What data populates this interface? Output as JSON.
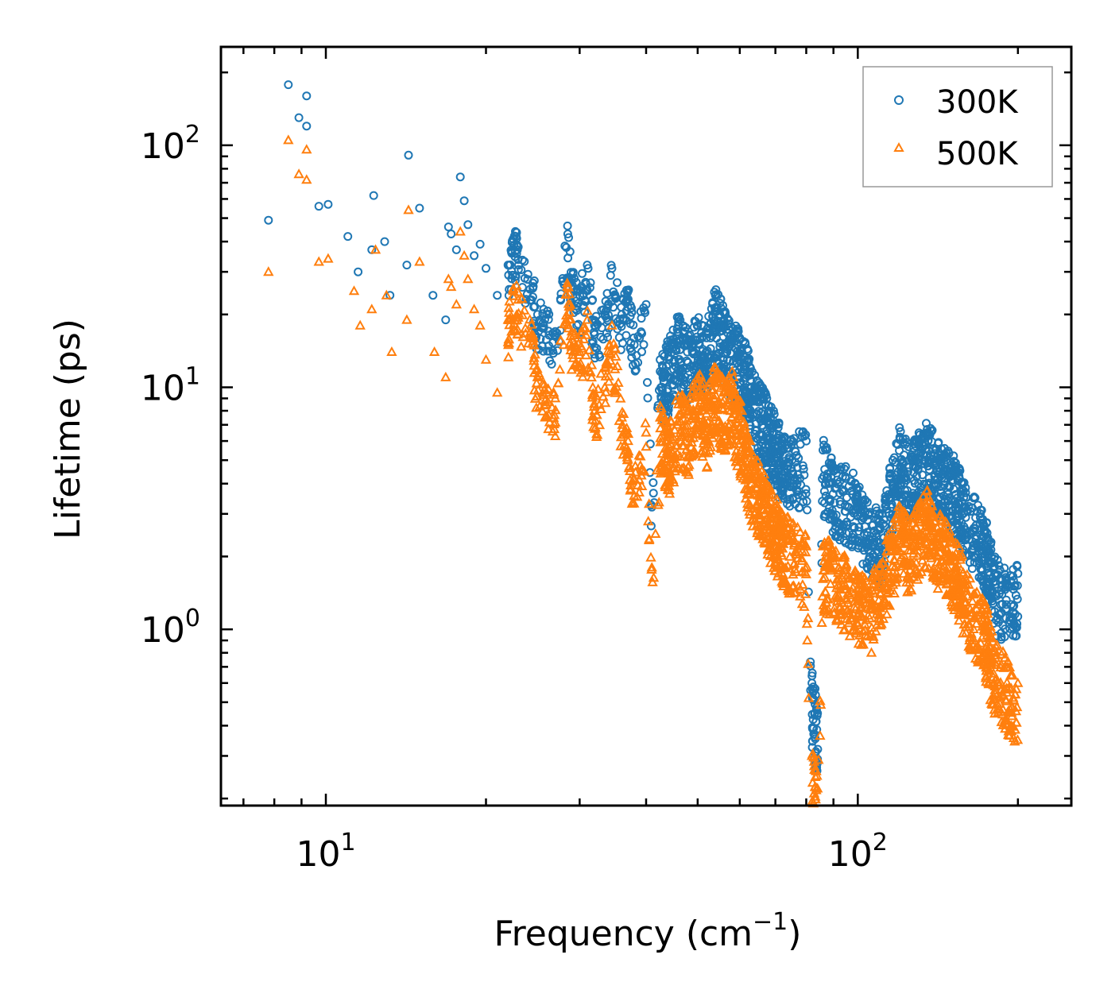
{
  "chart_data": {
    "type": "scatter",
    "title": "",
    "xlabel": "Frequency (cm",
    "xlabel_sup": "−1",
    "xlabel_close": ")",
    "ylabel": "Lifetime (ps)",
    "xscale": "log",
    "yscale": "log",
    "xlim": [
      6.35,
      252
    ],
    "ylim": [
      0.187,
      255
    ],
    "x_ticks": [
      {
        "value": 10,
        "base": "10",
        "exp": "1"
      },
      {
        "value": 100,
        "base": "10",
        "exp": "2"
      }
    ],
    "y_ticks": [
      {
        "value": 1,
        "base": "10",
        "exp": "0"
      },
      {
        "value": 10,
        "base": "10",
        "exp": "1"
      },
      {
        "value": 100,
        "base": "10",
        "exp": "2"
      }
    ],
    "legend_position": "top-right",
    "series": [
      {
        "name": "300K",
        "marker": "circle",
        "color": "#1f77b4",
        "sample_points": [
          [
            7.8,
            49
          ],
          [
            8.5,
            178
          ],
          [
            8.9,
            130
          ],
          [
            9.2,
            160
          ],
          [
            9.2,
            120
          ],
          [
            9.7,
            56
          ],
          [
            10.1,
            57
          ],
          [
            11.0,
            42
          ],
          [
            11.5,
            30
          ],
          [
            12.2,
            37
          ],
          [
            12.3,
            62
          ],
          [
            12.9,
            40
          ],
          [
            13.2,
            24
          ],
          [
            14.2,
            32
          ],
          [
            14.3,
            91
          ],
          [
            15.0,
            55
          ],
          [
            15.9,
            24
          ],
          [
            16.8,
            19
          ],
          [
            17.0,
            46
          ],
          [
            17.2,
            43
          ],
          [
            17.6,
            37
          ],
          [
            17.9,
            74
          ],
          [
            18.2,
            59
          ],
          [
            18.5,
            47
          ],
          [
            19.0,
            35
          ],
          [
            19.5,
            39
          ],
          [
            20.0,
            31
          ],
          [
            21.0,
            24
          ],
          [
            22.0,
            32
          ],
          [
            22.5,
            41
          ],
          [
            23.0,
            38
          ],
          [
            24.5,
            27
          ],
          [
            25.0,
            20
          ],
          [
            26.0,
            20
          ],
          [
            27.0,
            17
          ],
          [
            28.5,
            43
          ],
          [
            29.0,
            28
          ],
          [
            30.0,
            24
          ],
          [
            31.0,
            32
          ],
          [
            32.0,
            18
          ],
          [
            33.5,
            20
          ],
          [
            34.5,
            31
          ],
          [
            36.0,
            20
          ],
          [
            37.0,
            25
          ],
          [
            38.0,
            15
          ],
          [
            40.0,
            22
          ],
          [
            41.0,
            3.2
          ],
          [
            42.5,
            13
          ],
          [
            44.0,
            14
          ],
          [
            46.0,
            18
          ],
          [
            48.0,
            15
          ],
          [
            50.0,
            18
          ],
          [
            52.0,
            16
          ],
          [
            54.0,
            24
          ],
          [
            56.0,
            19
          ],
          [
            58.0,
            16
          ],
          [
            60.0,
            16
          ],
          [
            62.0,
            13
          ],
          [
            64.0,
            10
          ],
          [
            66.0,
            9
          ],
          [
            68.0,
            8
          ],
          [
            70.0,
            7
          ],
          [
            72.0,
            6
          ],
          [
            75.0,
            5.8
          ],
          [
            80.0,
            6
          ],
          [
            82.0,
            0.6
          ],
          [
            84.0,
            0.45
          ],
          [
            86.0,
            5.5
          ],
          [
            90.0,
            4.5
          ],
          [
            95.0,
            4.2
          ],
          [
            100.0,
            3.8
          ],
          [
            105.0,
            3.0
          ],
          [
            110.0,
            2.8
          ],
          [
            115.0,
            4.2
          ],
          [
            120.0,
            6.2
          ],
          [
            125.0,
            5.0
          ],
          [
            130.0,
            5.8
          ],
          [
            135.0,
            6.7
          ],
          [
            140.0,
            5.5
          ],
          [
            145.0,
            5.2
          ],
          [
            150.0,
            4.8
          ],
          [
            155.0,
            4.3
          ],
          [
            160.0,
            3.5
          ],
          [
            170.0,
            3.0
          ],
          [
            175.0,
            2.5
          ],
          [
            180.0,
            1.8
          ],
          [
            190.0,
            1.6
          ],
          [
            200.0,
            1.7
          ]
        ]
      },
      {
        "name": "500K",
        "marker": "triangle",
        "color": "#ff7f0e",
        "sample_points": [
          [
            7.8,
            30
          ],
          [
            8.5,
            105
          ],
          [
            8.9,
            76
          ],
          [
            9.2,
            72
          ],
          [
            9.2,
            96
          ],
          [
            9.7,
            33
          ],
          [
            10.1,
            34
          ],
          [
            11.3,
            25
          ],
          [
            11.6,
            18
          ],
          [
            12.2,
            21
          ],
          [
            12.4,
            37
          ],
          [
            13.0,
            24
          ],
          [
            13.3,
            14
          ],
          [
            14.2,
            19
          ],
          [
            14.3,
            54
          ],
          [
            15.0,
            33
          ],
          [
            16.0,
            14
          ],
          [
            16.8,
            11
          ],
          [
            17.0,
            28
          ],
          [
            17.2,
            26
          ],
          [
            17.6,
            22
          ],
          [
            17.9,
            44
          ],
          [
            18.2,
            35
          ],
          [
            18.5,
            28
          ],
          [
            19.0,
            21
          ],
          [
            19.5,
            18
          ],
          [
            20.0,
            13
          ],
          [
            21.0,
            9.5
          ],
          [
            22.0,
            19
          ],
          [
            22.5,
            25
          ],
          [
            23.0,
            23
          ],
          [
            24.5,
            16
          ],
          [
            25.0,
            11
          ],
          [
            26.0,
            9.5
          ],
          [
            27.0,
            9
          ],
          [
            28.5,
            26
          ],
          [
            29.0,
            17
          ],
          [
            30.0,
            14
          ],
          [
            31.0,
            19
          ],
          [
            32.0,
            8
          ],
          [
            33.5,
            12
          ],
          [
            34.5,
            18
          ],
          [
            36.0,
            7.5
          ],
          [
            37.0,
            6
          ],
          [
            38.0,
            4.2
          ],
          [
            40.0,
            6.5
          ],
          [
            41.0,
            1.8
          ],
          [
            42.5,
            7.5
          ],
          [
            44.0,
            6.5
          ],
          [
            46.0,
            8.5
          ],
          [
            48.0,
            8.0
          ],
          [
            50.0,
            11
          ],
          [
            52.0,
            8.5
          ],
          [
            54.0,
            12
          ],
          [
            56.0,
            9.5
          ],
          [
            58.0,
            10.5
          ],
          [
            60.0,
            8
          ],
          [
            62.0,
            6
          ],
          [
            64.0,
            4.5
          ],
          [
            66.0,
            4.5
          ],
          [
            68.0,
            3.5
          ],
          [
            70.0,
            3.2
          ],
          [
            72.0,
            2.8
          ],
          [
            75.0,
            2.5
          ],
          [
            80.0,
            2.2
          ],
          [
            82.0,
            0.3
          ],
          [
            84.0,
            0.22
          ],
          [
            86.0,
            2.2
          ],
          [
            90.0,
            2.0
          ],
          [
            95.0,
            1.8
          ],
          [
            100.0,
            1.6
          ],
          [
            105.0,
            1.4
          ],
          [
            110.0,
            1.8
          ],
          [
            115.0,
            2.3
          ],
          [
            120.0,
            3.0
          ],
          [
            125.0,
            2.5
          ],
          [
            130.0,
            3.0
          ],
          [
            135.0,
            3.4
          ],
          [
            140.0,
            2.8
          ],
          [
            145.0,
            2.6
          ],
          [
            150.0,
            2.3
          ],
          [
            155.0,
            2.0
          ],
          [
            160.0,
            1.6
          ],
          [
            170.0,
            1.3
          ],
          [
            175.0,
            1.1
          ],
          [
            180.0,
            0.8
          ],
          [
            190.0,
            0.7
          ],
          [
            200.0,
            0.6
          ]
        ]
      }
    ]
  }
}
